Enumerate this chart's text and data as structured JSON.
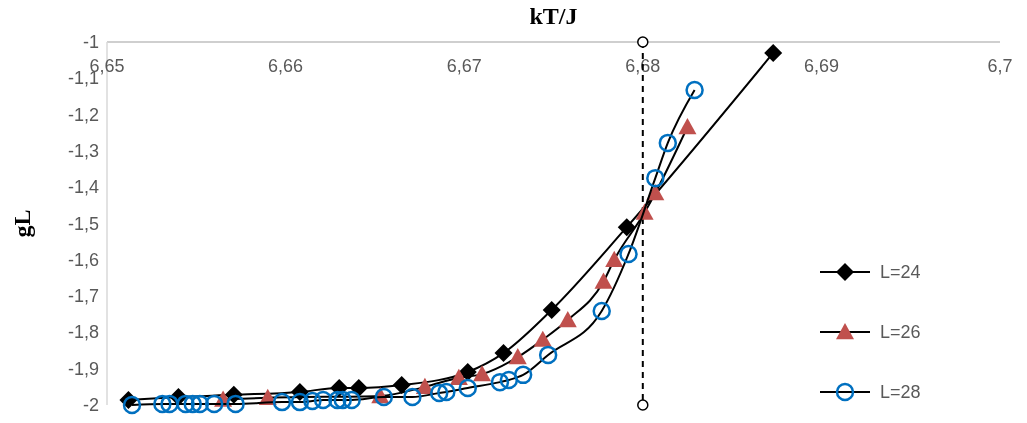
{
  "chart_data": {
    "type": "line",
    "xlabel": "kT/J",
    "ylabel": "gL",
    "xlim": [
      6.65,
      6.7
    ],
    "xticks": [
      {
        "value": 6.65,
        "label": "6,65"
      },
      {
        "value": 6.66,
        "label": "6,66"
      },
      {
        "value": 6.67,
        "label": "6,67"
      },
      {
        "value": 6.68,
        "label": "6,68"
      },
      {
        "value": 6.69,
        "label": "6,69"
      },
      {
        "value": 6.7,
        "label": "6,7"
      }
    ],
    "ylim": [
      -2,
      -1
    ],
    "yticks": [
      {
        "value": -2,
        "label": "-2"
      },
      {
        "value": -1.9,
        "label": "-1,9"
      },
      {
        "value": -1.8,
        "label": "-1,8"
      },
      {
        "value": -1.7,
        "label": "-1,7"
      },
      {
        "value": -1.6,
        "label": "-1,6"
      },
      {
        "value": -1.5,
        "label": "-1,5"
      },
      {
        "value": -1.4,
        "label": "-1,4"
      },
      {
        "value": -1.3,
        "label": "-1,3"
      },
      {
        "value": -1.2,
        "label": "-1,2"
      },
      {
        "value": -1.1,
        "label": "-1,1"
      },
      {
        "value": -1,
        "label": "-1"
      }
    ],
    "grid": false,
    "legend": "right",
    "line_style": "solid",
    "ref_lines": [
      {
        "axis": "x",
        "value": 6.68,
        "color": "#000000",
        "line_style": "dashed"
      }
    ],
    "series": [
      {
        "name": "L=24",
        "color": "#000000",
        "marker": "diamond",
        "x": [
          6.6512,
          6.654,
          6.6571,
          6.6608,
          6.663,
          6.6641,
          6.6665,
          6.6702,
          6.6722,
          6.6749,
          6.6791,
          6.6873
        ],
        "values": [
          -1.986,
          -1.978,
          -1.972,
          -1.964,
          -1.953,
          -1.953,
          -1.945,
          -1.909,
          -1.857,
          -1.738,
          -1.51,
          -1.03
        ]
      },
      {
        "name": "L=26",
        "color": "#c0504d",
        "marker": "triangle",
        "x": [
          6.6565,
          6.659,
          6.6653,
          6.6678,
          6.6697,
          6.671,
          6.673,
          6.6744,
          6.6758,
          6.6778,
          6.6784,
          6.6801,
          6.6807,
          6.6825
        ],
        "values": [
          -1.985,
          -1.98,
          -1.975,
          -1.95,
          -1.925,
          -1.915,
          -1.868,
          -1.82,
          -1.766,
          -1.66,
          -1.6,
          -1.47,
          -1.416,
          -1.234
        ]
      },
      {
        "name": "L=28",
        "color": "#0070c0",
        "marker": "circle",
        "x": [
          6.6514,
          6.6531,
          6.6535,
          6.6544,
          6.6548,
          6.6552,
          6.656,
          6.6572,
          6.6598,
          6.6608,
          6.6615,
          6.6621,
          6.6629,
          6.6632,
          6.6637,
          6.6655,
          6.6671,
          6.6686,
          6.669,
          6.6702,
          6.672,
          6.6725,
          6.6733,
          6.6747,
          6.6777,
          6.6792,
          6.6807,
          6.6814,
          6.6829
        ],
        "values": [
          -2.0,
          -1.997,
          -1.997,
          -1.997,
          -1.997,
          -1.997,
          -1.997,
          -1.997,
          -1.992,
          -1.992,
          -1.989,
          -1.986,
          -1.986,
          -1.986,
          -1.986,
          -1.978,
          -1.978,
          -1.967,
          -1.964,
          -1.953,
          -1.937,
          -1.931,
          -1.917,
          -1.862,
          -1.741,
          -1.584,
          -1.375,
          -1.278,
          -1.132
        ]
      }
    ]
  }
}
